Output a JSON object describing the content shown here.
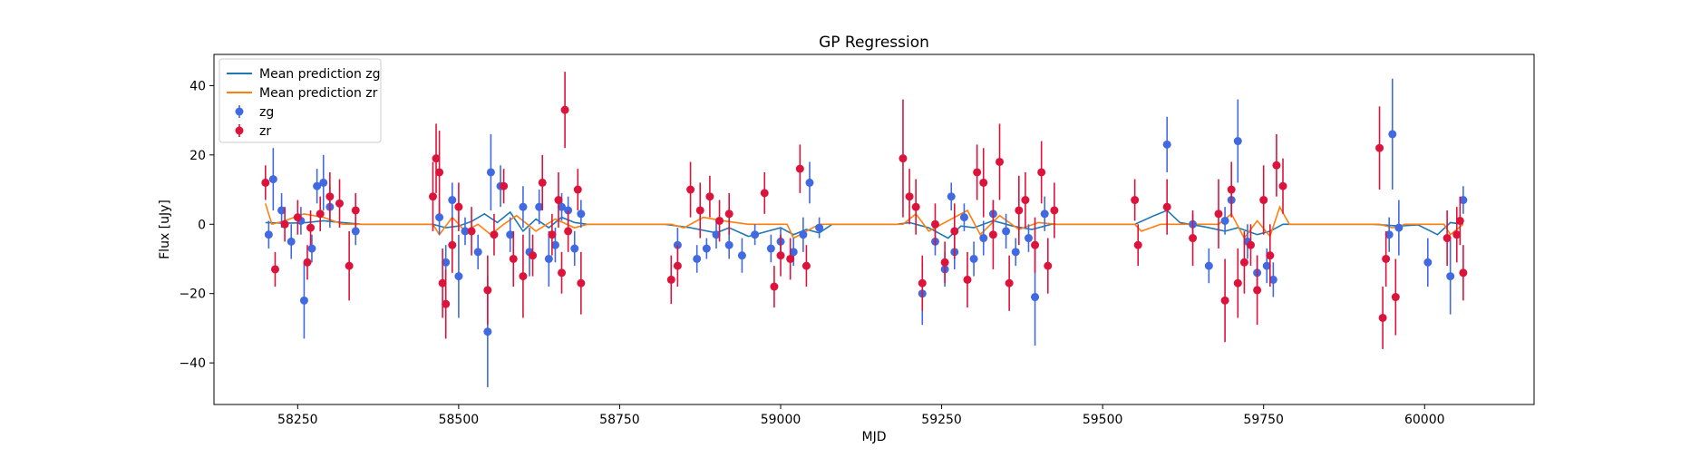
{
  "chart_data": {
    "type": "scatter",
    "title": "GP Regression",
    "xlabel": "MJD",
    "ylabel": "Flux [uJy]",
    "xlim": [
      58120,
      60170
    ],
    "ylim": [
      -52,
      49
    ],
    "xticks": [
      58250,
      58500,
      58750,
      59000,
      59250,
      59500,
      59750,
      60000
    ],
    "yticks": [
      -40,
      -20,
      0,
      20,
      40
    ],
    "grid": false,
    "legend_position": "top-left",
    "colors": {
      "zg_line": "#1f77b4",
      "zr_line": "#ff7f0e",
      "zg_points": "#4169e1",
      "zr_points": "#dc143c"
    },
    "lines": [
      {
        "name": "Mean prediction zg",
        "color": "#1f77b4",
        "points": [
          [
            58200,
            0.5
          ],
          [
            58230,
            0.3
          ],
          [
            58260,
            0.4
          ],
          [
            58290,
            1.0
          ],
          [
            58320,
            0.5
          ],
          [
            58350,
            0
          ],
          [
            58460,
            0
          ],
          [
            58480,
            -1.0
          ],
          [
            58500,
            -0.5
          ],
          [
            58520,
            0.8
          ],
          [
            58540,
            3.0
          ],
          [
            58560,
            0.5
          ],
          [
            58580,
            3.5
          ],
          [
            58600,
            -2.0
          ],
          [
            58620,
            1.5
          ],
          [
            58640,
            -1.0
          ],
          [
            58660,
            2.0
          ],
          [
            58680,
            0.5
          ],
          [
            58700,
            0
          ],
          [
            58820,
            0
          ],
          [
            58860,
            -1.0
          ],
          [
            58900,
            -2.5
          ],
          [
            58920,
            -1.0
          ],
          [
            58950,
            -3.5
          ],
          [
            58980,
            -2.0
          ],
          [
            59000,
            -1.0
          ],
          [
            59020,
            -3.0
          ],
          [
            59040,
            -1.5
          ],
          [
            59060,
            -2.5
          ],
          [
            59080,
            0
          ],
          [
            59180,
            0
          ],
          [
            59200,
            0.5
          ],
          [
            59230,
            -1.0
          ],
          [
            59260,
            -4.0
          ],
          [
            59280,
            -0.5
          ],
          [
            59300,
            -1.0
          ],
          [
            59330,
            1.0
          ],
          [
            59360,
            -0.5
          ],
          [
            59390,
            -1.5
          ],
          [
            59420,
            0
          ],
          [
            59550,
            0
          ],
          [
            59580,
            2.5
          ],
          [
            59600,
            4.0
          ],
          [
            59620,
            0.5
          ],
          [
            59660,
            -0.8
          ],
          [
            59690,
            -2.0
          ],
          [
            59710,
            -1.0
          ],
          [
            59740,
            -3.0
          ],
          [
            59760,
            -2.0
          ],
          [
            59780,
            0
          ],
          [
            59920,
            0
          ],
          [
            59960,
            -0.5
          ],
          [
            59990,
            -0.2
          ],
          [
            60020,
            -3.0
          ],
          [
            60040,
            0.5
          ],
          [
            60060,
            0
          ]
        ]
      },
      {
        "name": "Mean prediction zr",
        "color": "#ff7f0e",
        "points": [
          [
            58200,
            6.0
          ],
          [
            58210,
            0
          ],
          [
            58230,
            1.0
          ],
          [
            58260,
            3.0
          ],
          [
            58290,
            2.0
          ],
          [
            58320,
            0
          ],
          [
            58460,
            0
          ],
          [
            58470,
            -3.0
          ],
          [
            58490,
            2.0
          ],
          [
            58510,
            -2.0
          ],
          [
            58530,
            0
          ],
          [
            58550,
            -3.0
          ],
          [
            58570,
            0
          ],
          [
            58590,
            2.5
          ],
          [
            58620,
            -2.0
          ],
          [
            58650,
            1.5
          ],
          [
            58680,
            -1.0
          ],
          [
            58700,
            0
          ],
          [
            58830,
            0
          ],
          [
            58850,
            -1.0
          ],
          [
            58880,
            2.0
          ],
          [
            58910,
            1.0
          ],
          [
            58950,
            0
          ],
          [
            59010,
            0
          ],
          [
            59020,
            -4.0
          ],
          [
            59040,
            -2.0
          ],
          [
            59060,
            0
          ],
          [
            59190,
            0
          ],
          [
            59210,
            3.0
          ],
          [
            59230,
            -2.0
          ],
          [
            59260,
            1.0
          ],
          [
            59290,
            4.0
          ],
          [
            59310,
            -3.0
          ],
          [
            59340,
            2.5
          ],
          [
            59370,
            -1.5
          ],
          [
            59400,
            0.5
          ],
          [
            59430,
            0
          ],
          [
            59550,
            0
          ],
          [
            59560,
            -2.0
          ],
          [
            59590,
            0
          ],
          [
            59680,
            0
          ],
          [
            59700,
            3.0
          ],
          [
            59720,
            -4.0
          ],
          [
            59740,
            1.0
          ],
          [
            59760,
            -3.5
          ],
          [
            59775,
            5.0
          ],
          [
            59790,
            0
          ],
          [
            59930,
            0
          ],
          [
            59950,
            -1.0
          ],
          [
            59970,
            0
          ],
          [
            60030,
            0
          ],
          [
            60040,
            -3.0
          ],
          [
            60060,
            0
          ]
        ]
      }
    ],
    "series": [
      {
        "name": "zg",
        "color": "#4169e1",
        "points": [
          [
            58205,
            -3,
            4
          ],
          [
            58212,
            13,
            9
          ],
          [
            58225,
            4,
            5
          ],
          [
            58240,
            -5,
            5
          ],
          [
            58255,
            1,
            4
          ],
          [
            58260,
            -22,
            11
          ],
          [
            58272,
            -7,
            4
          ],
          [
            58280,
            11,
            5
          ],
          [
            58290,
            12,
            8
          ],
          [
            58300,
            5,
            6
          ],
          [
            58340,
            -2,
            4
          ],
          [
            58470,
            2,
            5
          ],
          [
            58480,
            -11,
            5
          ],
          [
            58490,
            7,
            5
          ],
          [
            58500,
            -15,
            12
          ],
          [
            58510,
            -2,
            4
          ],
          [
            58530,
            -8,
            5
          ],
          [
            58545,
            -31,
            16
          ],
          [
            58550,
            15,
            11
          ],
          [
            58565,
            11,
            6
          ],
          [
            58580,
            -3,
            5
          ],
          [
            58600,
            5,
            6
          ],
          [
            58610,
            -8,
            7
          ],
          [
            58625,
            5,
            5
          ],
          [
            58640,
            -10,
            8
          ],
          [
            58650,
            -6,
            5
          ],
          [
            58660,
            5,
            4
          ],
          [
            58670,
            4,
            4
          ],
          [
            58680,
            -7,
            5
          ],
          [
            58690,
            3,
            4
          ],
          [
            58840,
            -6,
            5
          ],
          [
            58870,
            -10,
            4
          ],
          [
            58885,
            -7,
            3
          ],
          [
            58900,
            -3,
            4
          ],
          [
            58920,
            -6,
            4
          ],
          [
            58940,
            -9,
            5
          ],
          [
            58960,
            -3,
            3
          ],
          [
            58985,
            -7,
            4
          ],
          [
            59000,
            -5,
            4
          ],
          [
            59020,
            -8,
            4
          ],
          [
            59035,
            -3,
            5
          ],
          [
            59045,
            12,
            6
          ],
          [
            59060,
            -1,
            3
          ],
          [
            59220,
            -20,
            9
          ],
          [
            59240,
            -5,
            4
          ],
          [
            59255,
            -13,
            5
          ],
          [
            59265,
            8,
            4
          ],
          [
            59270,
            -8,
            5
          ],
          [
            59285,
            2,
            4
          ],
          [
            59300,
            -10,
            5
          ],
          [
            59315,
            -4,
            5
          ],
          [
            59330,
            3,
            4
          ],
          [
            59350,
            -2,
            5
          ],
          [
            59365,
            -8,
            4
          ],
          [
            59385,
            -4,
            4
          ],
          [
            59395,
            -21,
            14
          ],
          [
            59410,
            3,
            5
          ],
          [
            59600,
            23,
            8
          ],
          [
            59640,
            0,
            3
          ],
          [
            59665,
            -12,
            5
          ],
          [
            59690,
            1,
            4
          ],
          [
            59700,
            7,
            4
          ],
          [
            59710,
            24,
            12
          ],
          [
            59725,
            -5,
            5
          ],
          [
            59740,
            -14,
            5
          ],
          [
            59755,
            -12,
            5
          ],
          [
            59765,
            -16,
            5
          ],
          [
            59950,
            26,
            16
          ],
          [
            59960,
            -1,
            8
          ],
          [
            59945,
            -3,
            5
          ],
          [
            60005,
            -11,
            7
          ],
          [
            60040,
            -15,
            11
          ],
          [
            60060,
            7,
            4
          ]
        ]
      },
      {
        "name": "zr",
        "color": "#dc143c",
        "points": [
          [
            58200,
            12,
            5
          ],
          [
            58215,
            -13,
            5
          ],
          [
            58230,
            0,
            5
          ],
          [
            58250,
            2,
            5
          ],
          [
            58265,
            -11,
            5
          ],
          [
            58270,
            -1,
            5
          ],
          [
            58285,
            3,
            5
          ],
          [
            58300,
            8,
            7
          ],
          [
            58315,
            6,
            7
          ],
          [
            58330,
            -12,
            10
          ],
          [
            58340,
            4,
            5
          ],
          [
            58460,
            8,
            10
          ],
          [
            58465,
            19,
            10
          ],
          [
            58470,
            15,
            12
          ],
          [
            58475,
            -17,
            10
          ],
          [
            58480,
            -23,
            10
          ],
          [
            58490,
            -6,
            8
          ],
          [
            58500,
            5,
            7
          ],
          [
            58520,
            -2,
            7
          ],
          [
            58545,
            -19,
            10
          ],
          [
            58555,
            -3,
            6
          ],
          [
            58570,
            11,
            5
          ],
          [
            58585,
            -10,
            8
          ],
          [
            58600,
            -15,
            12
          ],
          [
            58615,
            -9,
            6
          ],
          [
            58630,
            12,
            8
          ],
          [
            58645,
            -3,
            6
          ],
          [
            58655,
            7,
            8
          ],
          [
            58660,
            -14,
            6
          ],
          [
            58665,
            33,
            11
          ],
          [
            58670,
            -2,
            6
          ],
          [
            58685,
            10,
            6
          ],
          [
            58690,
            -17,
            9
          ],
          [
            58830,
            -16,
            7
          ],
          [
            58840,
            -12,
            6
          ],
          [
            58860,
            10,
            8
          ],
          [
            58875,
            4,
            8
          ],
          [
            58890,
            8,
            6
          ],
          [
            58905,
            1,
            6
          ],
          [
            58920,
            3,
            6
          ],
          [
            58975,
            9,
            6
          ],
          [
            58990,
            -18,
            6
          ],
          [
            59000,
            -9,
            6
          ],
          [
            59015,
            -10,
            6
          ],
          [
            59030,
            16,
            7
          ],
          [
            59040,
            -12,
            6
          ],
          [
            59190,
            19,
            17
          ],
          [
            59200,
            8,
            8
          ],
          [
            59210,
            5,
            8
          ],
          [
            59220,
            -17,
            8
          ],
          [
            59240,
            0,
            6
          ],
          [
            59255,
            -11,
            6
          ],
          [
            59270,
            -2,
            8
          ],
          [
            59290,
            -16,
            8
          ],
          [
            59305,
            15,
            8
          ],
          [
            59315,
            12,
            10
          ],
          [
            59330,
            -3,
            10
          ],
          [
            59340,
            18,
            11
          ],
          [
            59355,
            -17,
            8
          ],
          [
            59370,
            4,
            10
          ],
          [
            59380,
            7,
            8
          ],
          [
            59395,
            -6,
            8
          ],
          [
            59405,
            15,
            9
          ],
          [
            59415,
            -12,
            8
          ],
          [
            59425,
            4,
            8
          ],
          [
            59550,
            7,
            6
          ],
          [
            59555,
            -6,
            6
          ],
          [
            59600,
            5,
            8
          ],
          [
            59640,
            -4,
            8
          ],
          [
            59680,
            3,
            10
          ],
          [
            59690,
            -22,
            12
          ],
          [
            59700,
            10,
            8
          ],
          [
            59710,
            -17,
            10
          ],
          [
            59720,
            -11,
            9
          ],
          [
            59730,
            -6,
            6
          ],
          [
            59740,
            -19,
            10
          ],
          [
            59750,
            7,
            10
          ],
          [
            59760,
            -9,
            9
          ],
          [
            59770,
            17,
            9
          ],
          [
            59780,
            11,
            8
          ],
          [
            59930,
            22,
            12
          ],
          [
            59935,
            -27,
            9
          ],
          [
            59940,
            -10,
            8
          ],
          [
            59955,
            -21,
            11
          ],
          [
            60035,
            -4,
            8
          ],
          [
            60050,
            -3,
            8
          ],
          [
            60055,
            1,
            7
          ],
          [
            60060,
            -14,
            8
          ]
        ]
      }
    ]
  }
}
